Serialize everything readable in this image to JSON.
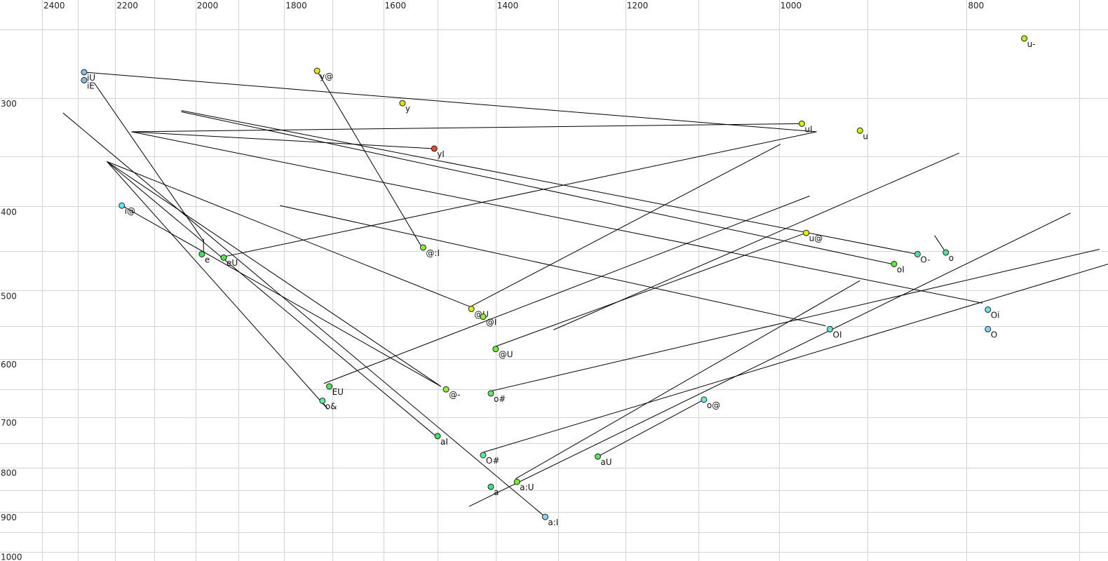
{
  "chart_data": {
    "type": "scatter",
    "title": "",
    "xlabel": "",
    "ylabel": "",
    "x_scale": "log",
    "y_scale": "log",
    "x_reversed": true,
    "xlim": [
      2500,
      676
    ],
    "ylim": [
      231,
      1024
    ],
    "grid": true,
    "x_gridlines": [
      2400,
      2300,
      2200,
      2100,
      2000,
      1900,
      1800,
      1700,
      1600,
      1500,
      1400,
      1300,
      1200,
      1100,
      1000,
      900,
      800,
      700
    ],
    "y_gridlines": [
      250,
      300,
      350,
      400,
      450,
      500,
      550,
      600,
      650,
      700,
      750,
      800,
      850,
      900,
      950,
      1000
    ],
    "x_ticks": [
      "2400",
      "2200",
      "2000",
      "1800",
      "1600",
      "1400",
      "1200",
      "1000",
      "800"
    ],
    "y_ticks": [
      "300",
      "400",
      "500",
      "600",
      "700",
      "800",
      "900",
      "1000"
    ],
    "points": [
      {
        "label": "iU",
        "x": 2283,
        "y": 280,
        "color": "#88bbee"
      },
      {
        "label": "iE",
        "x": 2283,
        "y": 286,
        "color": "#88bbee"
      },
      {
        "label": "y@",
        "x": 1731,
        "y": 279,
        "color": "#e8e800"
      },
      {
        "label": "y",
        "x": 1564,
        "y": 304,
        "color": "#e0e000"
      },
      {
        "label": "yI",
        "x": 1506,
        "y": 343,
        "color": "#e05020"
      },
      {
        "label": "u-",
        "x": 747,
        "y": 256,
        "color": "#b8f020"
      },
      {
        "label": "uI",
        "x": 973,
        "y": 321,
        "color": "#c8f000"
      },
      {
        "label": "u",
        "x": 908,
        "y": 327,
        "color": "#c8f000"
      },
      {
        "label": "u@",
        "x": 968,
        "y": 429,
        "color": "#e0f000"
      },
      {
        "label": "O-",
        "x": 848,
        "y": 454,
        "color": "#50e0b0"
      },
      {
        "label": "o",
        "x": 820,
        "y": 452,
        "color": "#50e0a0"
      },
      {
        "label": "oI",
        "x": 872,
        "y": 466,
        "color": "#60e840"
      },
      {
        "label": "i@",
        "x": 2183,
        "y": 399,
        "color": "#60e8f0"
      },
      {
        "label": "e",
        "x": 1985,
        "y": 454,
        "color": "#40e060"
      },
      {
        "label": "eU",
        "x": 1934,
        "y": 458,
        "color": "#50e850"
      },
      {
        "label": "@:I",
        "x": 1526,
        "y": 446,
        "color": "#80f030"
      },
      {
        "label": "@U",
        "x": 1441,
        "y": 525,
        "color": "#e0e800"
      },
      {
        "label": "@I",
        "x": 1421,
        "y": 536,
        "color": "#90f030"
      },
      {
        "label": "@U",
        "x": 1400,
        "y": 584,
        "color": "#70f030"
      },
      {
        "label": "EU",
        "x": 1706,
        "y": 645,
        "color": "#50e850"
      },
      {
        "label": "o&",
        "x": 1720,
        "y": 670,
        "color": "#60e8a0"
      },
      {
        "label": "@-",
        "x": 1485,
        "y": 650,
        "color": "#90f040"
      },
      {
        "label": "o#",
        "x": 1408,
        "y": 657,
        "color": "#60e860"
      },
      {
        "label": "aI",
        "x": 1500,
        "y": 736,
        "color": "#40e060"
      },
      {
        "label": "O#",
        "x": 1421,
        "y": 774,
        "color": "#60e8a0"
      },
      {
        "label": "a",
        "x": 1408,
        "y": 842,
        "color": "#40e080"
      },
      {
        "label": "a:U",
        "x": 1365,
        "y": 831,
        "color": "#70f030"
      },
      {
        "label": "a:I",
        "x": 1320,
        "y": 912,
        "color": "#88d8f0"
      },
      {
        "label": "aU",
        "x": 1240,
        "y": 777,
        "color": "#50e860"
      },
      {
        "label": "o@",
        "x": 1093,
        "y": 668,
        "color": "#70e8e8"
      },
      {
        "label": "OI",
        "x": 941,
        "y": 554,
        "color": "#60e8d0"
      },
      {
        "label": "Oi",
        "x": 780,
        "y": 526,
        "color": "#60e8e0"
      },
      {
        "label": "O",
        "x": 780,
        "y": 554,
        "color": "#80d8f8"
      }
    ],
    "segments": [
      [
        [
          2283,
          280
        ],
        [
          956,
          328
        ]
      ],
      [
        [
          2256,
          288
        ],
        [
          1980,
          439
        ]
      ],
      [
        [
          1981,
          436
        ],
        [
          1981,
          454
        ]
      ],
      [
        [
          1731,
          279
        ],
        [
          1528,
          446
        ]
      ],
      [
        [
          2341,
          312
        ],
        [
          1320,
          912
        ]
      ],
      [
        [
          2222,
          355
        ],
        [
          1494,
          645
        ]
      ],
      [
        [
          2222,
          355
        ],
        [
          1503,
          736
        ]
      ],
      [
        [
          2222,
          355
        ],
        [
          1709,
          685
        ]
      ],
      [
        [
          2222,
          355
        ],
        [
          1443,
          522
        ]
      ],
      [
        [
          2158,
          328
        ],
        [
          973,
          321
        ]
      ],
      [
        [
          2158,
          328
        ],
        [
          1509,
          343
        ]
      ],
      [
        [
          2158,
          328
        ],
        [
          785,
          517
        ]
      ],
      [
        [
          2034,
          310
        ],
        [
          848,
          454
        ]
      ],
      [
        [
          2034,
          311
        ],
        [
          874,
          466
        ]
      ],
      [
        [
          1809,
          399
        ],
        [
          946,
          549
        ]
      ],
      [
        [
          2183,
          399
        ],
        [
          1494,
          645
        ]
      ],
      [
        [
          1942,
          458
        ],
        [
          956,
          328
        ]
      ],
      [
        [
          1443,
          522
        ],
        [
          998,
          339
        ]
      ],
      [
        [
          1717,
          640
        ],
        [
          964,
          389
        ]
      ],
      [
        [
          1400,
          580
        ],
        [
          968,
          429
        ]
      ],
      [
        [
          1307,
          555
        ],
        [
          807,
          347
        ]
      ],
      [
        [
          1408,
          653
        ],
        [
          683,
          448
        ]
      ],
      [
        [
          1420,
          768
        ],
        [
          676,
          466
        ]
      ],
      [
        [
          1445,
          887
        ],
        [
          707,
          407
        ]
      ],
      [
        [
          1367,
          824
        ],
        [
          908,
          487
        ]
      ],
      [
        [
          1240,
          777
        ],
        [
          1093,
          668
        ]
      ],
      [
        [
          831,
          432
        ],
        [
          820,
          452
        ]
      ],
      [
        [
          1722,
          670
        ],
        [
          1709,
          685
        ]
      ]
    ]
  }
}
